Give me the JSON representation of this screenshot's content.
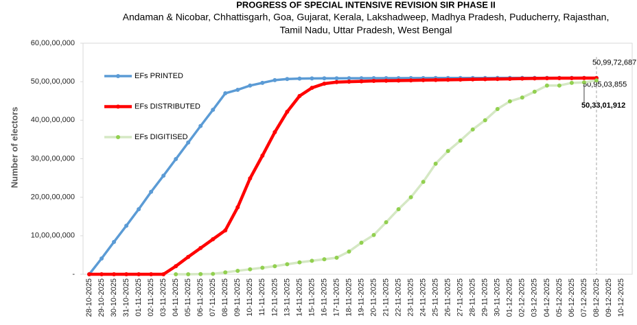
{
  "chart_data": {
    "type": "line",
    "title": "PROGRESS OF SPECIAL INTENSIVE REVISION SIR PHASE II",
    "subtitle": [
      "Andaman & Nicobar, Chhattisgarh, Goa, Gujarat, Kerala, Lakshadweep, Madhya Pradesh, Puducherry, Rajasthan,",
      "Tamil Nadu, Uttar Pradesh, West Bengal"
    ],
    "y_label": "Number of electors",
    "categories": [
      "28-10-2025",
      "29-10-2025",
      "30-10-2025",
      "31-10-2025",
      "01-11-2025",
      "02-11-2025",
      "03-11-2025",
      "04-11-2025",
      "05-11-2025",
      "06-11-2025",
      "07-11-2025",
      "08-11-2025",
      "09-11-2025",
      "10-11-2025",
      "11-11-2025",
      "12-11-2025",
      "13-11-2025",
      "14-11-2025",
      "15-11-2025",
      "16-11-2025",
      "17-11-2025",
      "18-11-2025",
      "19-11-2025",
      "20-11-2025",
      "21-11-2025",
      "22-11-2025",
      "23-11-2025",
      "24-11-2025",
      "25-11-2025",
      "26-11-2025",
      "27-11-2025",
      "28-11-2025",
      "29-11-2025",
      "30-11-2025",
      "01-12-2025",
      "02-12-2025",
      "03-12-2025",
      "04-12-2025",
      "05-12-2025",
      "06-12-2025",
      "07-12-2025",
      "08-12-2025",
      "09-12-2025",
      "10-12-2025"
    ],
    "series": [
      {
        "name": "EFs PRINTED",
        "color": "#5b9bd5",
        "marker_color": "#5b9bd5",
        "values": [
          0,
          41000000,
          84000000,
          126000000,
          169000000,
          214000000,
          256000000,
          299000000,
          342000000,
          385000000,
          427000000,
          470000000,
          479000000,
          490000000,
          497000000,
          504000000,
          507000000,
          508000000,
          508500000,
          508700000,
          508800000,
          508900000,
          509000000,
          509100000,
          509200000,
          509300000,
          509400000,
          509500000,
          509550000,
          509600000,
          509650000,
          509700000,
          509750000,
          509800000,
          509820000,
          509840000,
          509860000,
          509880000,
          509900000,
          509920000,
          509950000,
          509972687,
          null,
          null
        ],
        "value_labels": [
          null,
          null,
          null,
          null,
          null,
          null,
          null,
          null,
          null,
          null,
          null,
          null,
          null,
          null,
          null,
          null,
          null,
          null,
          null,
          null,
          null,
          null,
          null,
          null,
          null,
          null,
          null,
          null,
          null,
          null,
          null,
          null,
          null,
          null,
          null,
          null,
          null,
          null,
          null,
          null,
          null,
          "50,99,72,687",
          null,
          null
        ]
      },
      {
        "name": "EFs DISTRIBUTED",
        "color": "#ff0000",
        "marker_color": "#ff0000",
        "values": [
          0,
          0,
          0,
          0,
          0,
          0,
          0,
          21000000,
          45000000,
          68000000,
          91000000,
          114000000,
          174000000,
          249000000,
          308000000,
          369000000,
          422000000,
          463000000,
          484000000,
          495000000,
          499000000,
          500000000,
          501000000,
          502000000,
          502500000,
          503000000,
          503500000,
          504000000,
          504500000,
          505000000,
          505500000,
          506000000,
          506500000,
          507000000,
          507500000,
          508000000,
          508500000,
          509000000,
          509200000,
          509300000,
          509400000,
          509503855,
          null,
          null
        ],
        "value_labels": [
          null,
          null,
          null,
          null,
          null,
          null,
          null,
          null,
          null,
          null,
          null,
          null,
          null,
          null,
          null,
          null,
          null,
          null,
          null,
          null,
          null,
          null,
          null,
          null,
          null,
          null,
          null,
          null,
          null,
          null,
          null,
          null,
          null,
          null,
          null,
          null,
          null,
          null,
          null,
          null,
          null,
          "50,95,03,855",
          null,
          null
        ]
      },
      {
        "name": "EFs DIGITISED",
        "color": "#d5e8c4",
        "marker_color": "#92d050",
        "values": [
          null,
          null,
          null,
          null,
          null,
          null,
          null,
          0,
          0,
          500000,
          1000000,
          5000000,
          9000000,
          13000000,
          17000000,
          21000000,
          26000000,
          31000000,
          35000000,
          39000000,
          43000000,
          59000000,
          82000000,
          102000000,
          135000000,
          169000000,
          200000000,
          240000000,
          287000000,
          320000000,
          347000000,
          376000000,
          400000000,
          429000000,
          449000000,
          459000000,
          474000000,
          490000000,
          490000000,
          497000000,
          498000000,
          503301912,
          null,
          null
        ],
        "value_labels": [
          null,
          null,
          null,
          null,
          null,
          null,
          null,
          null,
          null,
          null,
          null,
          null,
          null,
          null,
          null,
          null,
          null,
          null,
          null,
          null,
          null,
          null,
          null,
          null,
          null,
          null,
          null,
          null,
          null,
          null,
          null,
          null,
          null,
          null,
          null,
          null,
          null,
          null,
          null,
          null,
          null,
          "50,33,01,912",
          null,
          null
        ]
      }
    ],
    "ylim": [
      0,
      600000000
    ],
    "yticks": [
      {
        "value": 0,
        "label": "-"
      },
      {
        "value": 100000000,
        "label": "10,00,00,000"
      },
      {
        "value": 200000000,
        "label": "20,00,00,000"
      },
      {
        "value": 300000000,
        "label": "30,00,00,000"
      },
      {
        "value": 400000000,
        "label": "40,00,00,000"
      },
      {
        "value": 500000000,
        "label": "50,00,00,000"
      },
      {
        "value": 600000000,
        "label": "60,00,00,000"
      }
    ],
    "grid": false,
    "legend": "upper left"
  }
}
